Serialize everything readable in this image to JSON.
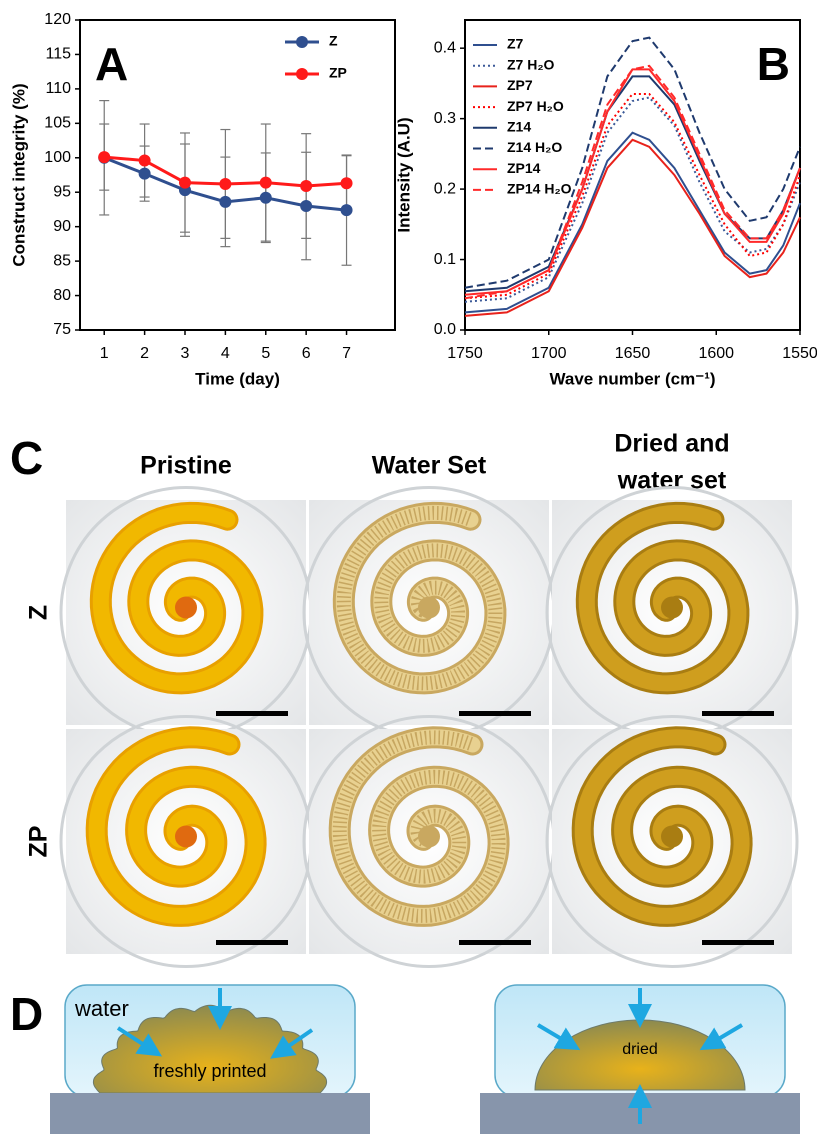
{
  "chart_data": [
    {
      "type": "line",
      "panel_label": "A",
      "xlabel": "Time (day)",
      "ylabel": "Construct integrity (%)",
      "x": [
        1,
        2,
        3,
        4,
        5,
        6,
        7
      ],
      "xlim": [
        0.4,
        8.2
      ],
      "xticks": [
        1,
        2,
        3,
        4,
        5,
        6,
        7
      ],
      "ylim": [
        75,
        120
      ],
      "yticks": [
        75,
        80,
        85,
        90,
        95,
        100,
        105,
        110,
        115,
        120
      ],
      "markers": true,
      "legend": "upper right",
      "grid": false,
      "series": [
        {
          "name": "Z",
          "color": "#2f4f8f",
          "dash": "solid",
          "values": [
            100,
            97.7,
            95.3,
            93.6,
            94.2,
            93.0,
            92.4
          ],
          "errors": [
            8.3,
            4.0,
            6.7,
            6.5,
            6.5,
            7.8,
            8.0
          ]
        },
        {
          "name": "ZP",
          "color": "#ff1a1a",
          "dash": "solid",
          "values": [
            100.1,
            99.6,
            96.4,
            96.2,
            96.4,
            95.9,
            96.3
          ],
          "errors": [
            4.8,
            5.3,
            7.2,
            7.9,
            8.5,
            7.6,
            4.0
          ]
        }
      ]
    },
    {
      "type": "line",
      "panel_label": "B",
      "xlabel": "Wave number (cm⁻¹)",
      "ylabel": "Intensity (A.U)",
      "x": [
        1750,
        1725,
        1700,
        1680,
        1665,
        1650,
        1640,
        1625,
        1610,
        1595,
        1580,
        1570,
        1560,
        1550
      ],
      "xlim": [
        1750,
        1550
      ],
      "xticks": [
        1750,
        1700,
        1650,
        1600,
        1550
      ],
      "ylim": [
        0,
        0.44
      ],
      "yticks": [
        {
          "value": 0,
          "label": "0.0"
        },
        0.1,
        0.2,
        0.3,
        0.4
      ],
      "markers": false,
      "legend": "upper left",
      "grid": false,
      "series": [
        {
          "name": "Z7",
          "color": "#2f4f8f",
          "dash": "solid",
          "values": [
            0.025,
            0.03,
            0.06,
            0.15,
            0.24,
            0.28,
            0.27,
            0.23,
            0.17,
            0.11,
            0.08,
            0.085,
            0.12,
            0.18
          ]
        },
        {
          "name": "Z7 H₂O",
          "color": "#3b5998",
          "dash": "dotted",
          "values": [
            0.04,
            0.045,
            0.075,
            0.18,
            0.28,
            0.325,
            0.33,
            0.29,
            0.21,
            0.14,
            0.11,
            0.115,
            0.15,
            0.21
          ]
        },
        {
          "name": "ZP7",
          "color": "#e8221b",
          "dash": "solid",
          "values": [
            0.02,
            0.025,
            0.055,
            0.145,
            0.23,
            0.27,
            0.26,
            0.22,
            0.165,
            0.105,
            0.075,
            0.08,
            0.11,
            0.16
          ]
        },
        {
          "name": "ZP7 H₂O",
          "color": "#ff0000",
          "dash": "dotted",
          "values": [
            0.045,
            0.05,
            0.08,
            0.19,
            0.29,
            0.335,
            0.335,
            0.295,
            0.22,
            0.15,
            0.105,
            0.11,
            0.15,
            0.22
          ]
        },
        {
          "name": "Z14",
          "color": "#1f3a6e",
          "dash": "solid",
          "values": [
            0.055,
            0.06,
            0.09,
            0.2,
            0.31,
            0.36,
            0.36,
            0.32,
            0.24,
            0.165,
            0.13,
            0.13,
            0.17,
            0.23
          ]
        },
        {
          "name": "Z14 H₂O",
          "color": "#1f3a6e",
          "dash": "dashed",
          "values": [
            0.06,
            0.07,
            0.1,
            0.23,
            0.36,
            0.41,
            0.415,
            0.37,
            0.28,
            0.2,
            0.155,
            0.16,
            0.2,
            0.26
          ]
        },
        {
          "name": "ZP14",
          "color": "#ff2a2a",
          "dash": "solid",
          "values": [
            0.05,
            0.055,
            0.085,
            0.2,
            0.31,
            0.37,
            0.37,
            0.325,
            0.245,
            0.165,
            0.125,
            0.125,
            0.165,
            0.23
          ]
        },
        {
          "name": "ZP14 H₂O",
          "color": "#ff2a2a",
          "dash": "dashed",
          "values": [
            0.045,
            0.055,
            0.085,
            0.21,
            0.32,
            0.37,
            0.375,
            0.33,
            0.25,
            0.17,
            0.13,
            0.13,
            0.17,
            0.23
          ]
        }
      ]
    }
  ],
  "panel_c": {
    "label": "C",
    "column_headers": [
      [
        "Pristine"
      ],
      [
        "Water Set"
      ],
      [
        "Dried and",
        "water set"
      ]
    ],
    "row_labels": [
      "Z",
      "ZP"
    ]
  },
  "panel_d": {
    "label": "D",
    "left": {
      "water": "water",
      "gel": "freshly printed"
    },
    "right": {
      "gel": "dried"
    }
  }
}
